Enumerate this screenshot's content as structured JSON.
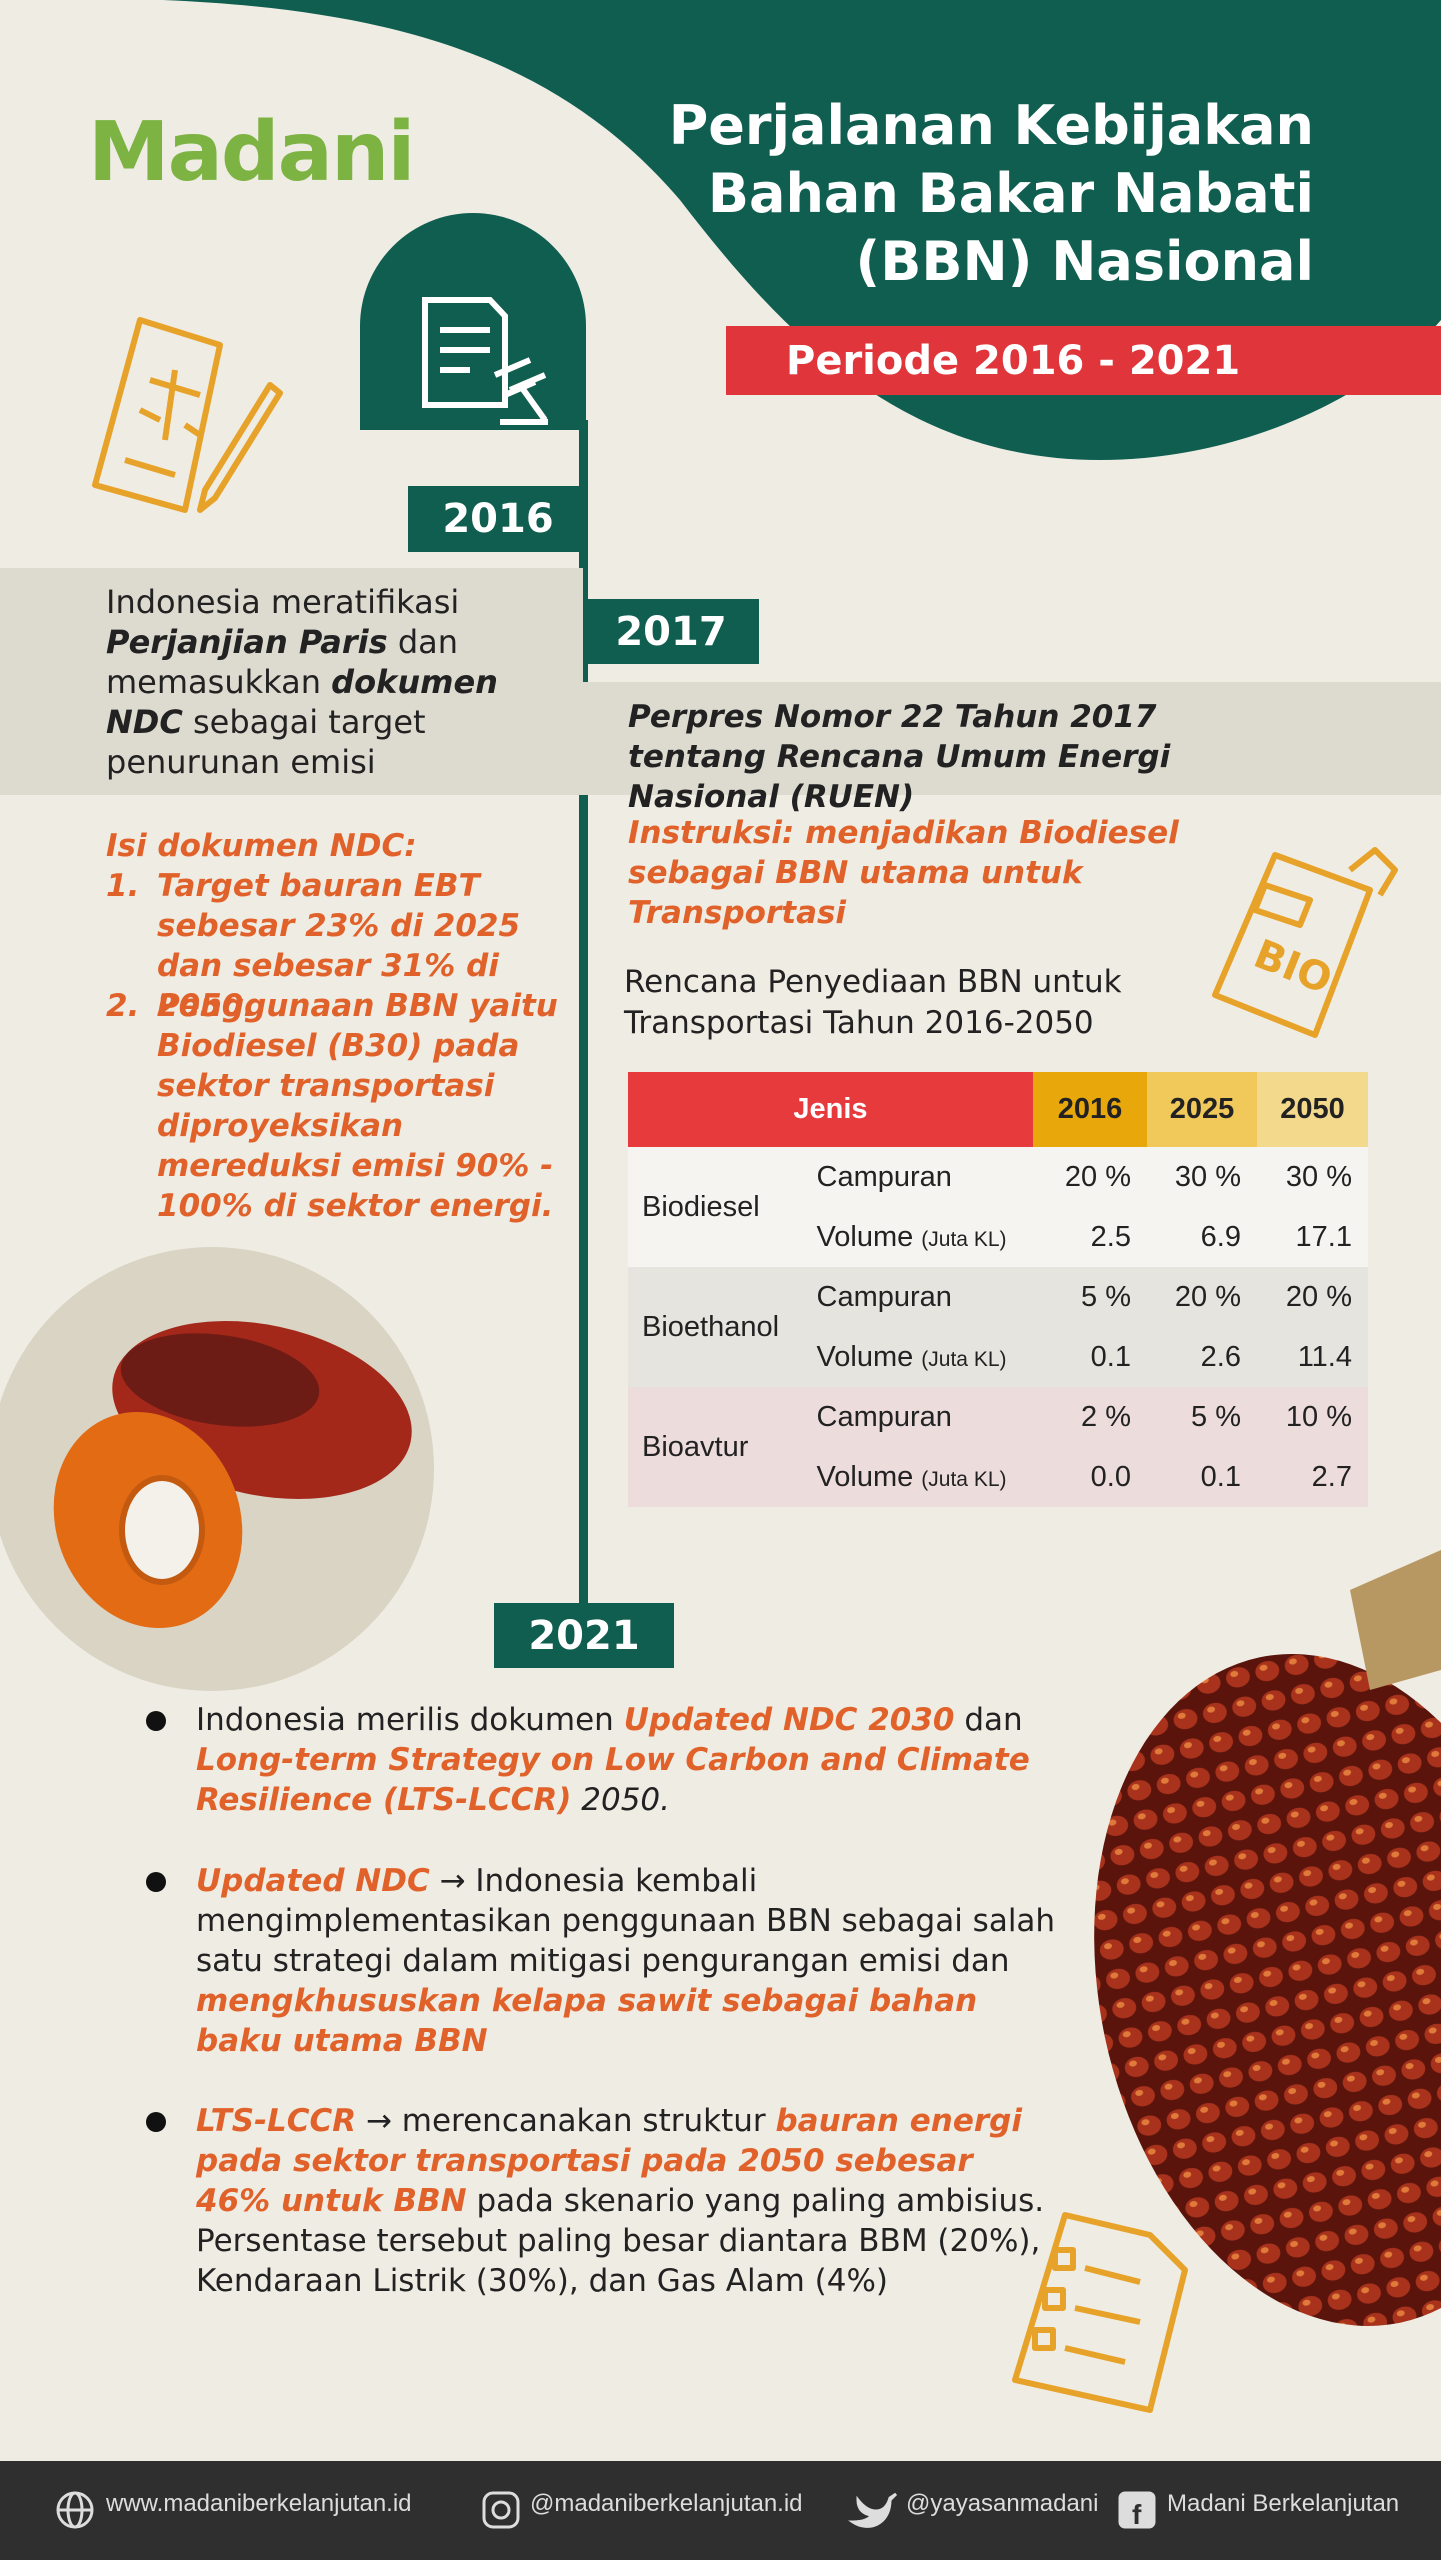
{
  "header": {
    "logo": "Madani",
    "title_lines": [
      "Perjalanan Kebijakan",
      "Bahan Bakar Nabati",
      "(BBN) Nasional"
    ],
    "period": "Periode 2016 - 2021"
  },
  "year_2016": {
    "year": "2016",
    "statement": [
      "Indonesia meratifikasi ",
      "Perjanjian Paris",
      " dan memasukkan ",
      "dokumen NDC",
      " sebagai target penurunan emisi"
    ],
    "ndc_heading": "Isi dokumen NDC:",
    "ndc_items": [
      {
        "number": "1.",
        "text": "Target bauran EBT sebesar 23% di 2025 dan sebesar 31% di 2050."
      },
      {
        "number": "2.",
        "text": "Penggunaan BBN yaitu Biodiesel (B30) pada sektor transportasi diproyeksikan mereduksi emisi 90% - 100% di sektor energi."
      }
    ]
  },
  "year_2017": {
    "year": "2017",
    "regulation": "Perpres Nomor 22 Tahun 2017 tentang Rencana Umum Energi Nasional (RUEN)",
    "instruction": "Instruksi: menjadikan Biodiesel sebagai BBN utama untuk Transportasi",
    "table_title": "Rencana Penyediaan BBN untuk Transportasi Tahun 2016-2050",
    "table": {
      "header": [
        "Jenis",
        "2016",
        "2025",
        "2050"
      ],
      "groups": [
        {
          "name": "Biodiesel",
          "rows": [
            {
              "label": "Campuran",
              "values": [
                "20 %",
                "30 %",
                "30 %"
              ]
            },
            {
              "label": "Volume",
              "unit": "(Juta KL)",
              "values": [
                "2.5",
                "6.9",
                "17.1"
              ]
            }
          ]
        },
        {
          "name": "Bioethanol",
          "rows": [
            {
              "label": "Campuran",
              "values": [
                "5 %",
                "20 %",
                "20 %"
              ]
            },
            {
              "label": "Volume",
              "unit": "(Juta KL)",
              "values": [
                "0.1",
                "2.6",
                "11.4"
              ]
            }
          ]
        },
        {
          "name": "Bioavtur",
          "rows": [
            {
              "label": "Campuran",
              "values": [
                "2 %",
                "5 %",
                "10 %"
              ]
            },
            {
              "label": "Volume",
              "unit": "(Juta KL)",
              "values": [
                "0.0",
                "0.1",
                "2.7"
              ]
            }
          ]
        }
      ]
    }
  },
  "year_2021": {
    "year": "2021",
    "bullets": [
      [
        "Indonesia merilis dokumen ",
        "Updated NDC 2030",
        " dan ",
        "Long-term Strategy on Low Carbon and Climate Resilience (LTS-LCCR)",
        " 2050."
      ],
      [
        "Updated NDC",
        " → Indonesia kembali mengimplementasikan penggunaan BBN sebagai salah satu strategi dalam mitigasi pengurangan emisi dan ",
        "mengkhususkan kelapa sawit sebagai bahan baku utama BBN"
      ],
      [
        "LTS-LCCR",
        " →  merencanakan struktur ",
        "bauran energi pada sektor transportasi pada 2050 sebesar 46% untuk BBN",
        " pada skenario yang paling ambisius. Persentase tersebut paling besar diantara BBM (20%), Kendaraan Listrik (30%), dan Gas Alam (4%)"
      ]
    ]
  },
  "footer": {
    "website": "www.madaniberkelanjutan.id",
    "instagram": "@madaniberkelanjutan.id",
    "twitter": "@yayasanmadani",
    "facebook": "Madani Berkelanjutan"
  }
}
